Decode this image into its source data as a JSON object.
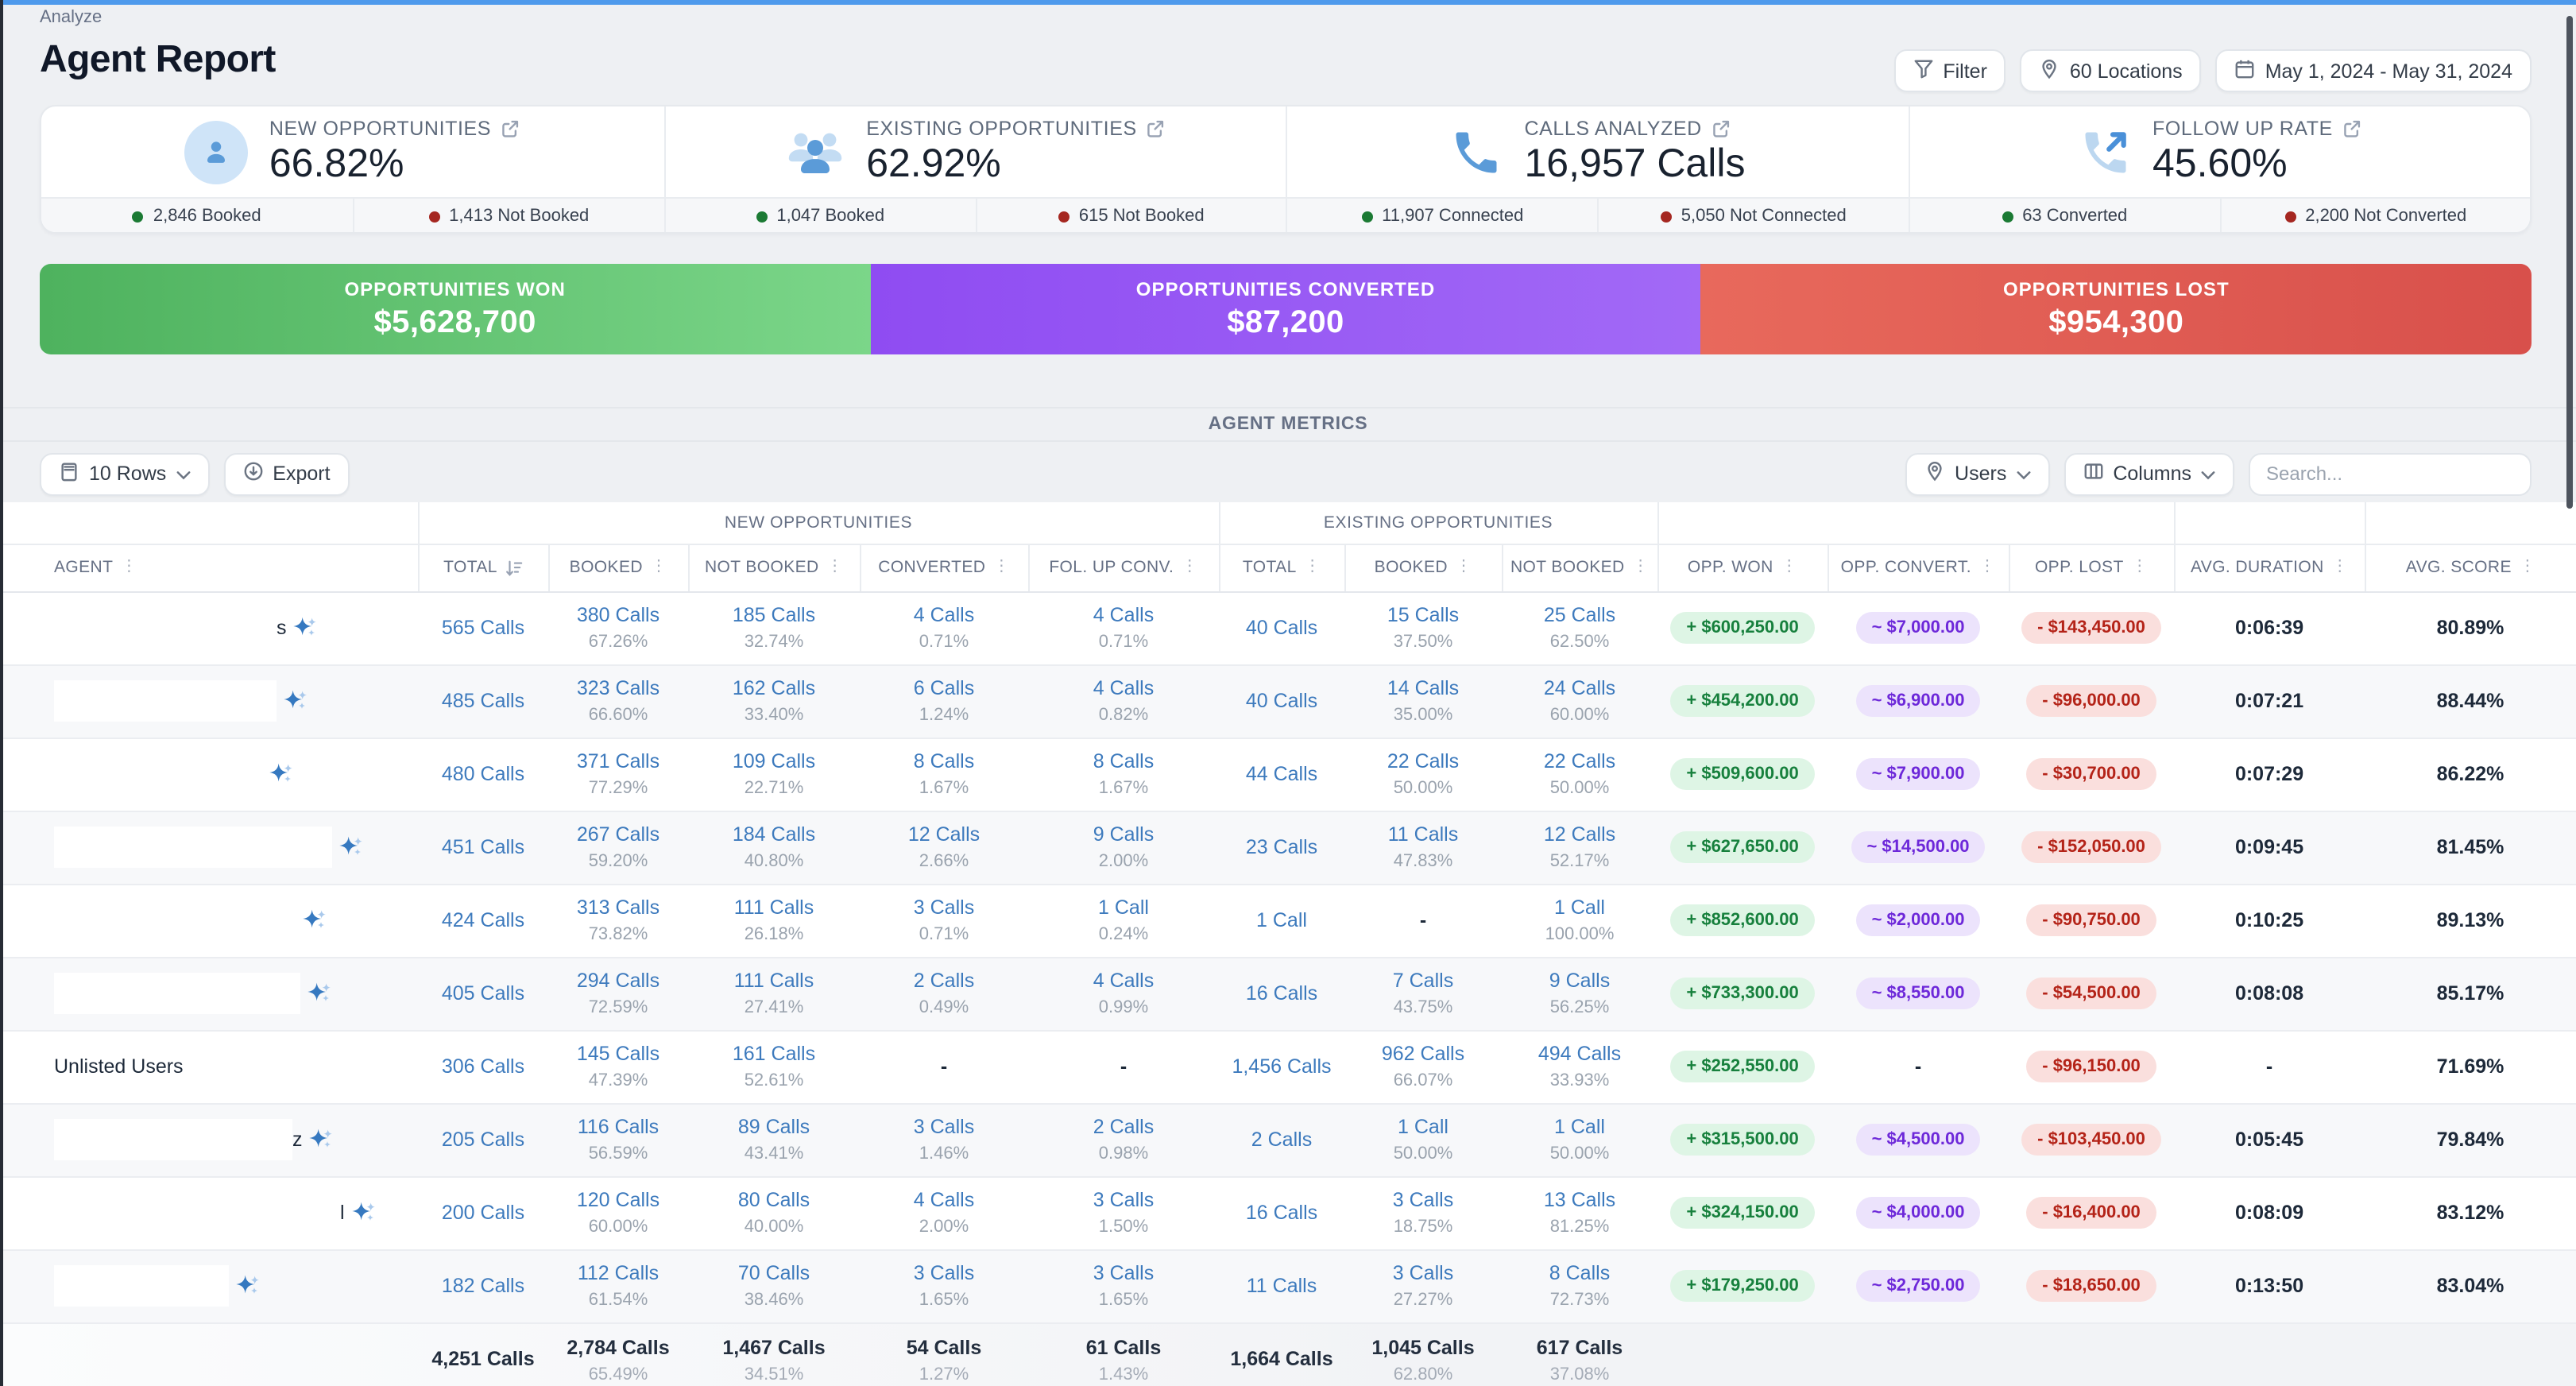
{
  "breadcrumb": "Analyze",
  "page_title": "Agent Report",
  "toolbar": {
    "filter_label": "Filter",
    "locations_label": "60 Locations",
    "date_range": "May 1, 2024 - May 31, 2024"
  },
  "colors": {
    "topbar_blue": "#4e9aec",
    "link_blue": "#3d7abd",
    "dot_green": "#1b7a34",
    "dot_red": "#a52721"
  },
  "kpis": [
    {
      "icon": "person-icon",
      "label": "NEW OPPORTUNITIES",
      "value": "66.82%",
      "stats": [
        {
          "dot": "green",
          "text": "2,846 Booked"
        },
        {
          "dot": "red",
          "text": "1,413 Not Booked"
        }
      ]
    },
    {
      "icon": "people-icon",
      "label": "EXISTING OPPORTUNITIES",
      "value": "62.92%",
      "stats": [
        {
          "dot": "green",
          "text": "1,047 Booked"
        },
        {
          "dot": "red",
          "text": "615 Not Booked"
        }
      ]
    },
    {
      "icon": "phone-icon",
      "label": "CALLS ANALYZED",
      "value": "16,957 Calls",
      "stats": [
        {
          "dot": "green",
          "text": "11,907 Connected"
        },
        {
          "dot": "red",
          "text": "5,050 Not Connected"
        }
      ]
    },
    {
      "icon": "phone-followup-icon",
      "label": "FOLLOW UP RATE",
      "value": "45.60%",
      "stats": [
        {
          "dot": "green",
          "text": "63 Converted"
        },
        {
          "dot": "red",
          "text": "2,200 Not Converted"
        }
      ]
    }
  ],
  "banners": [
    {
      "label": "OPPORTUNITIES WON",
      "value": "$5,628,700",
      "from": "#4eb25e",
      "to": "#7bd689"
    },
    {
      "label": "OPPORTUNITIES CONVERTED",
      "value": "$87,200",
      "from": "#8f4cf2",
      "to": "#a269f6"
    },
    {
      "label": "OPPORTUNITIES LOST",
      "value": "$954,300",
      "from": "#e8695c",
      "to": "#d8504b"
    }
  ],
  "metrics": {
    "title": "AGENT METRICS",
    "controls": {
      "rows_label": "10 Rows",
      "export_label": "Export",
      "users_label": "Users",
      "columns_label": "Columns",
      "search_placeholder": "Search..."
    },
    "groups": {
      "new": "NEW OPPORTUNITIES",
      "existing": "EXISTING OPPORTUNITIES"
    },
    "columns": [
      "AGENT",
      "TOTAL",
      "BOOKED",
      "NOT BOOKED",
      "CONVERTED",
      "FOL. UP CONV.",
      "TOTAL",
      "BOOKED",
      "NOT BOOKED",
      "OPP. WON",
      "OPP. CONVERT.",
      "OPP. LOST",
      "AVG. DURATION",
      "AVG. SCORE"
    ],
    "rows": [
      {
        "agent": "",
        "frag": "s",
        "bw": 0,
        "ind": 140,
        "nt": "565 Calls",
        "nb": "380 Calls",
        "nbp": "67.26%",
        "nnb": "185 Calls",
        "nnbp": "32.74%",
        "nc": "4 Calls",
        "ncp": "0.71%",
        "nf": "4 Calls",
        "nfp": "0.71%",
        "et": "40 Calls",
        "eb": "15 Calls",
        "ebp": "37.50%",
        "enb": "25 Calls",
        "enbp": "62.50%",
        "won": "+ $600,250.00",
        "cv": "~ $7,000.00",
        "lost": "- $143,450.00",
        "dur": "0:06:39",
        "sc": "80.89%"
      },
      {
        "agent": "",
        "frag": "",
        "bw": 140,
        "ind": 0,
        "nt": "485 Calls",
        "nb": "323 Calls",
        "nbp": "66.60%",
        "nnb": "162 Calls",
        "nnbp": "33.40%",
        "nc": "6 Calls",
        "ncp": "1.24%",
        "nf": "4 Calls",
        "nfp": "0.82%",
        "et": "40 Calls",
        "eb": "14 Calls",
        "ebp": "35.00%",
        "enb": "24 Calls",
        "enbp": "60.00%",
        "won": "+ $454,200.00",
        "cv": "~ $6,900.00",
        "lost": "- $96,000.00",
        "dur": "0:07:21",
        "sc": "88.44%"
      },
      {
        "agent": "",
        "frag": "",
        "bw": 0,
        "ind": 131,
        "nt": "480 Calls",
        "nb": "371 Calls",
        "nbp": "77.29%",
        "nnb": "109 Calls",
        "nnbp": "22.71%",
        "nc": "8 Calls",
        "ncp": "1.67%",
        "nf": "8 Calls",
        "nfp": "1.67%",
        "et": "44 Calls",
        "eb": "22 Calls",
        "ebp": "50.00%",
        "enb": "22 Calls",
        "enbp": "50.00%",
        "won": "+ $509,600.00",
        "cv": "~ $7,900.00",
        "lost": "- $30,700.00",
        "dur": "0:07:29",
        "sc": "86.22%"
      },
      {
        "agent": "",
        "frag": "",
        "bw": 175,
        "ind": 0,
        "nt": "451 Calls",
        "nb": "267 Calls",
        "nbp": "59.20%",
        "nnb": "184 Calls",
        "nnbp": "40.80%",
        "nc": "12 Calls",
        "ncp": "2.66%",
        "nf": "9 Calls",
        "nfp": "2.00%",
        "et": "23 Calls",
        "eb": "11 Calls",
        "ebp": "47.83%",
        "enb": "12 Calls",
        "enbp": "52.17%",
        "won": "+ $627,650.00",
        "cv": "~ $14,500.00",
        "lost": "- $152,050.00",
        "dur": "0:09:45",
        "sc": "81.45%"
      },
      {
        "agent": "",
        "frag": "",
        "bw": 0,
        "ind": 152,
        "nt": "424 Calls",
        "nb": "313 Calls",
        "nbp": "73.82%",
        "nnb": "111 Calls",
        "nnbp": "26.18%",
        "nc": "3 Calls",
        "ncp": "0.71%",
        "nf": "1 Call",
        "nfp": "0.24%",
        "et": "1 Call",
        "eb": "-",
        "ebp": "",
        "enb": "1 Call",
        "enbp": "100.00%",
        "won": "+ $852,600.00",
        "cv": "~ $2,000.00",
        "lost": "- $90,750.00",
        "dur": "0:10:25",
        "sc": "89.13%"
      },
      {
        "agent": "",
        "frag": "",
        "bw": 155,
        "ind": 0,
        "nt": "405 Calls",
        "nb": "294 Calls",
        "nbp": "72.59%",
        "nnb": "111 Calls",
        "nnbp": "27.41%",
        "nc": "2 Calls",
        "ncp": "0.49%",
        "nf": "4 Calls",
        "nfp": "0.99%",
        "et": "16 Calls",
        "eb": "7 Calls",
        "ebp": "43.75%",
        "enb": "9 Calls",
        "enbp": "56.25%",
        "won": "+ $733,300.00",
        "cv": "~ $8,550.00",
        "lost": "- $54,500.00",
        "dur": "0:08:08",
        "sc": "85.17%"
      },
      {
        "agent": "Unlisted Users",
        "frag": "",
        "bw": 0,
        "ind": 0,
        "nt": "306 Calls",
        "nb": "145 Calls",
        "nbp": "47.39%",
        "nnb": "161 Calls",
        "nnbp": "52.61%",
        "nc": "-",
        "ncp": "",
        "nf": "-",
        "nfp": "",
        "et": "1,456 Calls",
        "eb": "962 Calls",
        "ebp": "66.07%",
        "enb": "494 Calls",
        "enbp": "33.93%",
        "won": "+ $252,550.00",
        "cv": "-",
        "lost": "- $96,150.00",
        "dur": "-",
        "sc": "71.69%"
      },
      {
        "agent": "",
        "frag": "z",
        "bw": 150,
        "ind": 0,
        "nt": "205 Calls",
        "nb": "116 Calls",
        "nbp": "56.59%",
        "nnb": "89 Calls",
        "nnbp": "43.41%",
        "nc": "3 Calls",
        "ncp": "1.46%",
        "nf": "2 Calls",
        "nfp": "0.98%",
        "et": "2 Calls",
        "eb": "1 Call",
        "ebp": "50.00%",
        "enb": "1 Call",
        "enbp": "50.00%",
        "won": "+ $315,500.00",
        "cv": "~ $4,500.00",
        "lost": "- $103,450.00",
        "dur": "0:05:45",
        "sc": "79.84%"
      },
      {
        "agent": "",
        "frag": "l",
        "bw": 0,
        "ind": 180,
        "nt": "200 Calls",
        "nb": "120 Calls",
        "nbp": "60.00%",
        "nnb": "80 Calls",
        "nnbp": "40.00%",
        "nc": "4 Calls",
        "ncp": "2.00%",
        "nf": "3 Calls",
        "nfp": "1.50%",
        "et": "16 Calls",
        "eb": "3 Calls",
        "ebp": "18.75%",
        "enb": "13 Calls",
        "enbp": "81.25%",
        "won": "+ $324,150.00",
        "cv": "~ $4,000.00",
        "lost": "- $16,400.00",
        "dur": "0:08:09",
        "sc": "83.12%"
      },
      {
        "agent": "",
        "frag": "",
        "bw": 110,
        "ind": 0,
        "nt": "182 Calls",
        "nb": "112 Calls",
        "nbp": "61.54%",
        "nnb": "70 Calls",
        "nnbp": "38.46%",
        "nc": "3 Calls",
        "ncp": "1.65%",
        "nf": "3 Calls",
        "nfp": "1.65%",
        "et": "11 Calls",
        "eb": "3 Calls",
        "ebp": "27.27%",
        "enb": "8 Calls",
        "enbp": "72.73%",
        "won": "+ $179,250.00",
        "cv": "~ $2,750.00",
        "lost": "- $18,650.00",
        "dur": "0:13:50",
        "sc": "83.04%"
      }
    ],
    "footer": {
      "nt": "4,251 Calls",
      "nb": "2,784 Calls",
      "nbp": "65.49%",
      "nnb": "1,467 Calls",
      "nnbp": "34.51%",
      "nc": "54 Calls",
      "ncp": "1.27%",
      "nf": "61 Calls",
      "nfp": "1.43%",
      "et": "1,664 Calls",
      "eb": "1,045 Calls",
      "ebp": "62.80%",
      "enb": "617 Calls",
      "enbp": "37.08%",
      "won": "",
      "cv": "",
      "lost": "",
      "dur": "",
      "sc": ""
    }
  }
}
